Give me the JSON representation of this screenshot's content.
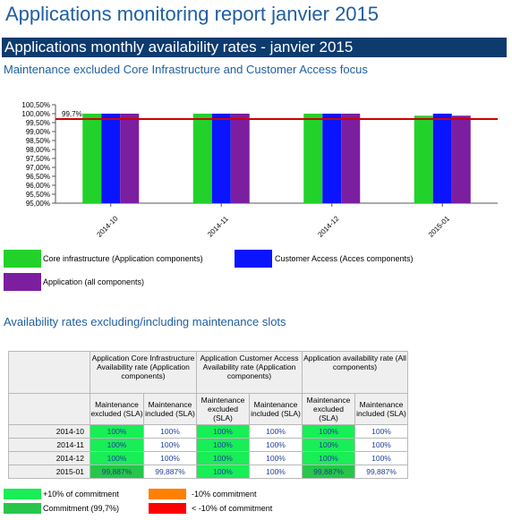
{
  "report_title": "Applications monitoring report janvier 2015",
  "section_title": "Applications monthly availability rates - janvier 2015",
  "chart_subtitle": "Maintenance excluded Core Infrastructure and Customer Access focus",
  "chart_data": {
    "type": "bar",
    "categories": [
      "2014-10",
      "2014-11",
      "2014-12",
      "2015-01"
    ],
    "series": [
      {
        "name": "Core infrastructure (Application components)",
        "values": [
          100,
          100,
          100,
          99.887
        ],
        "color": "#22d22a"
      },
      {
        "name": "Customer Access (Acces components)",
        "values": [
          100,
          100,
          100,
          100
        ],
        "color": "#0a14ff"
      },
      {
        "name": "Application (all components)",
        "values": [
          100,
          100,
          100,
          99.887
        ],
        "color": "#7b1ea0"
      }
    ],
    "ylim": [
      95,
      100.5
    ],
    "yticks": [
      "95,00%",
      "95,50%",
      "96,00%",
      "96,50%",
      "97,00%",
      "97,50%",
      "98,00%",
      "98,50%",
      "99,00%",
      "99,50%",
      "100,00%",
      "100,50%"
    ],
    "reference_line": {
      "value": 99.7,
      "label": "99,7%",
      "color": "#d00000"
    },
    "legend": "bottom",
    "grid": false
  },
  "table_title": "Availability rates excluding/including maintenance slots",
  "table": {
    "groups": [
      "Application Core Infrastructure Availability rate (Application components)",
      "Application Customer Access Availability rate (Application components)",
      "Application availability rate (All components)"
    ],
    "subheaders": [
      "Maintenance excluded (SLA)",
      "Maintenance included (SLA)"
    ],
    "rows": [
      {
        "label": "2014-10",
        "values": [
          "100%",
          "100%",
          "100%",
          "100%",
          "100%",
          "100%"
        ]
      },
      {
        "label": "2014-11",
        "values": [
          "100%",
          "100%",
          "100%",
          "100%",
          "100%",
          "100%"
        ]
      },
      {
        "label": "2014-12",
        "values": [
          "100%",
          "100%",
          "100%",
          "100%",
          "100%",
          "100%"
        ]
      },
      {
        "label": "2015-01",
        "values": [
          "99,887%",
          "99,887%",
          "100%",
          "100%",
          "99,887%",
          "99,887%"
        ]
      }
    ]
  },
  "key": [
    {
      "label": "+10% of commitment",
      "color": "#18ee55"
    },
    {
      "label": "-10% commitment",
      "color": "#ff8000"
    },
    {
      "label": "Commitment (99,7%)",
      "color": "#27c64a"
    },
    {
      "label": "<  -10% of commitment",
      "color": "#ff0000"
    }
  ]
}
